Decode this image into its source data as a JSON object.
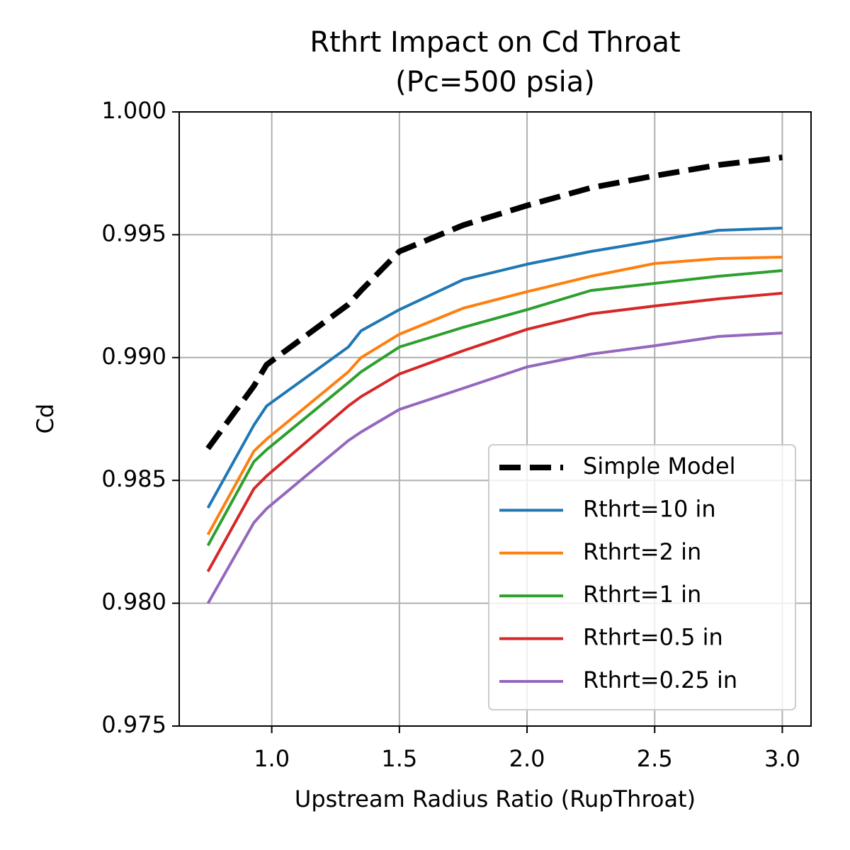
{
  "chart_data": {
    "type": "line",
    "title": "Rthrt Impact on Cd Throat",
    "subtitle": "(Pc=500 psia)",
    "x_label": "Upstream Radius Ratio (RupThroat)",
    "y_label": "Cd",
    "x": [
      0.75,
      0.93,
      0.98,
      1.3,
      1.35,
      1.5,
      1.75,
      2.0,
      2.25,
      2.5,
      2.75,
      3.0
    ],
    "series": [
      {
        "name": "Simple Model",
        "color": "#000000",
        "linestyle": "dashed",
        "values": [
          0.9863,
          0.98884,
          0.98971,
          0.99216,
          0.99273,
          0.99432,
          0.99539,
          0.99619,
          0.99691,
          0.9974,
          0.99784,
          0.99815
        ]
      },
      {
        "name": "Rthrt=10 in",
        "color": "#1f77b4",
        "linestyle": "solid",
        "values": [
          0.98388,
          0.98725,
          0.98803,
          0.99043,
          0.99109,
          0.99195,
          0.99317,
          0.9938,
          0.99432,
          0.99475,
          0.99518,
          0.99527
        ]
      },
      {
        "name": "Rthrt=2 in",
        "color": "#ff7f0e",
        "linestyle": "solid",
        "values": [
          0.98279,
          0.98619,
          0.98668,
          0.98942,
          0.99,
          0.99095,
          0.99201,
          0.99268,
          0.99331,
          0.99383,
          0.99403,
          0.99409
        ]
      },
      {
        "name": "Rthrt=1 in",
        "color": "#2ca02c",
        "linestyle": "solid",
        "values": [
          0.98235,
          0.98576,
          0.98625,
          0.98898,
          0.98942,
          0.99043,
          0.99123,
          0.99195,
          0.99273,
          0.99302,
          0.99331,
          0.99354
        ]
      },
      {
        "name": "Rthrt=0.5 in",
        "color": "#d62728",
        "linestyle": "solid",
        "values": [
          0.98129,
          0.98466,
          0.98518,
          0.98803,
          0.98841,
          0.98933,
          0.99028,
          0.99115,
          0.99178,
          0.9921,
          0.99239,
          0.99262
        ]
      },
      {
        "name": "Rthrt=0.25 in",
        "color": "#9467bd",
        "linestyle": "solid",
        "values": [
          0.97999,
          0.98328,
          0.98385,
          0.98662,
          0.98697,
          0.98789,
          0.98875,
          0.98962,
          0.99014,
          0.99048,
          0.99086,
          0.991
        ]
      }
    ],
    "xlim": [
      0.6375,
      3.1125
    ],
    "xticks": [
      {
        "value": 1.0,
        "label": "1.0"
      },
      1.5,
      {
        "value": 2.0,
        "label": "2.0"
      },
      2.5,
      {
        "value": 3.0,
        "label": "3.0"
      }
    ],
    "ylim": [
      0.975,
      1.0
    ],
    "yticks": [
      {
        "value": 0.975,
        "label": "0.975"
      },
      {
        "value": 0.98,
        "label": "0.980"
      },
      {
        "value": 0.985,
        "label": "0.985"
      },
      {
        "value": 0.99,
        "label": "0.990"
      },
      {
        "value": 0.995,
        "label": "0.995"
      },
      {
        "value": 1.0,
        "label": "1.000"
      }
    ],
    "grid": true,
    "legend": "lower right"
  }
}
